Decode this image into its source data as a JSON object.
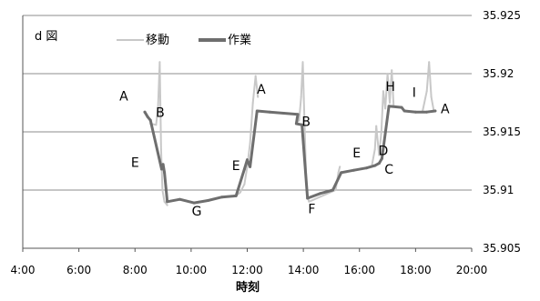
{
  "chart_data": {
    "type": "line",
    "panel_label": "d 図",
    "xlabel": "時刻",
    "x_ticks": [
      "4:00",
      "6:00",
      "8:00",
      "10:00",
      "12:00",
      "14:00",
      "16:00",
      "18:00",
      "20:00"
    ],
    "xlim": [
      4,
      20
    ],
    "ylim": [
      35.905,
      35.925
    ],
    "y_ticks": [
      "35.905",
      "35.91",
      "35.915",
      "35.92",
      "35.925"
    ],
    "y_tick_values": [
      35.905,
      35.91,
      35.915,
      35.92,
      35.925
    ],
    "grid": true,
    "y_axis_side": "right",
    "legend_position": "top-left",
    "series": [
      {
        "name": "移動",
        "color": "#c8c8c8",
        "width": 2,
        "points": [
          [
            8.55,
            35.9157
          ],
          [
            8.75,
            35.9156
          ],
          [
            8.82,
            35.917
          ],
          [
            8.88,
            35.921
          ],
          [
            8.93,
            35.9135
          ],
          [
            8.98,
            35.91
          ],
          [
            9.05,
            35.909
          ],
          [
            9.15,
            35.9087
          ],
          [
            11.6,
            35.9095
          ],
          [
            11.75,
            35.9098
          ],
          [
            11.9,
            35.9105
          ],
          [
            12.0,
            35.912
          ],
          [
            12.1,
            35.914
          ],
          [
            12.2,
            35.9175
          ],
          [
            12.3,
            35.9198
          ],
          [
            12.38,
            35.918
          ],
          [
            13.75,
            35.9158
          ],
          [
            13.85,
            35.916
          ],
          [
            13.92,
            35.918
          ],
          [
            13.98,
            35.921
          ],
          [
            14.05,
            35.915
          ],
          [
            14.1,
            35.911
          ],
          [
            14.15,
            35.9095
          ],
          [
            14.2,
            35.909
          ],
          [
            15.15,
            35.91
          ],
          [
            15.25,
            35.9115
          ],
          [
            15.3,
            35.912
          ],
          [
            16.45,
            35.9122
          ],
          [
            16.55,
            35.9135
          ],
          [
            16.6,
            35.9155
          ],
          [
            16.7,
            35.913
          ],
          [
            16.78,
            35.915
          ],
          [
            16.85,
            35.9185
          ],
          [
            16.92,
            35.917
          ],
          [
            17.0,
            35.92
          ],
          [
            17.08,
            35.9175
          ],
          [
            17.15,
            35.9203
          ],
          [
            17.22,
            35.9172
          ],
          [
            18.25,
            35.9168
          ],
          [
            18.4,
            35.9185
          ],
          [
            18.48,
            35.921
          ],
          [
            18.56,
            35.918
          ],
          [
            18.65,
            35.9168
          ]
        ]
      },
      {
        "name": "作業",
        "color": "#6e6e6e",
        "width": 3,
        "points": [
          [
            8.35,
            35.9167
          ],
          [
            8.45,
            35.9163
          ],
          [
            8.55,
            35.916
          ],
          [
            8.95,
            35.9118
          ],
          [
            9.0,
            35.9122
          ],
          [
            9.05,
            35.9115
          ],
          [
            9.15,
            35.909
          ],
          [
            9.6,
            35.9092
          ],
          [
            10.1,
            35.9089
          ],
          [
            10.6,
            35.9091
          ],
          [
            11.1,
            35.9094
          ],
          [
            11.6,
            35.9095
          ],
          [
            11.9,
            35.9118
          ],
          [
            12.0,
            35.9126
          ],
          [
            12.1,
            35.912
          ],
          [
            12.35,
            35.9168
          ],
          [
            12.8,
            35.9167
          ],
          [
            13.3,
            35.9166
          ],
          [
            13.8,
            35.9165
          ],
          [
            13.75,
            35.9157
          ],
          [
            13.95,
            35.9156
          ],
          [
            14.15,
            35.9093
          ],
          [
            14.6,
            35.9097
          ],
          [
            15.05,
            35.91
          ],
          [
            15.35,
            35.9115
          ],
          [
            15.8,
            35.9117
          ],
          [
            16.25,
            35.9119
          ],
          [
            16.55,
            35.9121
          ],
          [
            16.7,
            35.9123
          ],
          [
            16.8,
            35.9127
          ],
          [
            17.05,
            35.9172
          ],
          [
            17.5,
            35.9171
          ],
          [
            17.6,
            35.9168
          ],
          [
            18.0,
            35.9167
          ],
          [
            18.4,
            35.9167
          ],
          [
            18.7,
            35.9168
          ]
        ]
      }
    ],
    "annotations": [
      {
        "text": "A",
        "x": 7.6,
        "y": 35.9177
      },
      {
        "text": "B",
        "x": 8.9,
        "y": 35.9163
      },
      {
        "text": "E",
        "x": 8.0,
        "y": 35.912
      },
      {
        "text": "G",
        "x": 10.2,
        "y": 35.9078
      },
      {
        "text": "E",
        "x": 11.6,
        "y": 35.9117
      },
      {
        "text": "A",
        "x": 12.5,
        "y": 35.9183
      },
      {
        "text": "B",
        "x": 14.1,
        "y": 35.9155
      },
      {
        "text": "F",
        "x": 14.3,
        "y": 35.908
      },
      {
        "text": "E",
        "x": 15.9,
        "y": 35.9128
      },
      {
        "text": "D",
        "x": 16.85,
        "y": 35.913
      },
      {
        "text": "C",
        "x": 17.05,
        "y": 35.9114
      },
      {
        "text": "H",
        "x": 17.1,
        "y": 35.9185
      },
      {
        "text": "I",
        "x": 17.95,
        "y": 35.918
      },
      {
        "text": "A",
        "x": 19.05,
        "y": 35.9166
      }
    ]
  }
}
